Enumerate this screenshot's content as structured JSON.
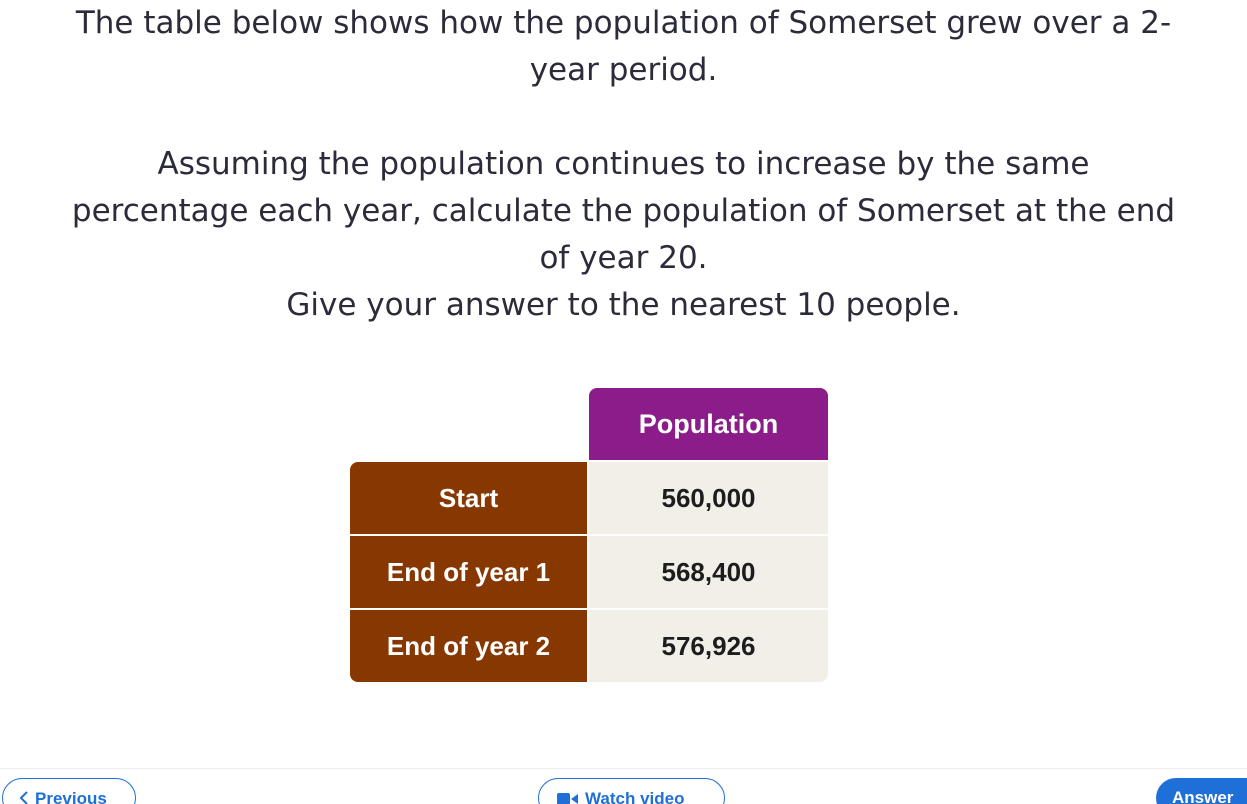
{
  "question": {
    "line1": "The table below shows how the population of Somerset grew over a 2-",
    "line2": "year period.",
    "line3": "Assuming the population continues to increase by the same",
    "line4": "percentage each year, calculate the population of Somerset at the end",
    "line5": "of year 20.",
    "line6": "Give your answer to the nearest 10 people."
  },
  "table": {
    "header": "Population",
    "rows": [
      {
        "label": "Start",
        "value": "560,000"
      },
      {
        "label": "End of year 1",
        "value": "568,400"
      },
      {
        "label": "End of year 2",
        "value": "576,926"
      }
    ]
  },
  "footer": {
    "previous_label": "Previous",
    "video_label": "Watch video",
    "answer_label": "Answer"
  },
  "colors": {
    "header_purple": "#8b1c89",
    "row_label_brown": "#873700",
    "value_cell_bg": "#f2efe9",
    "accent_blue": "#1f6fd8"
  },
  "icons": {
    "previous": "chevron-left-icon",
    "video": "video-camera-icon"
  }
}
